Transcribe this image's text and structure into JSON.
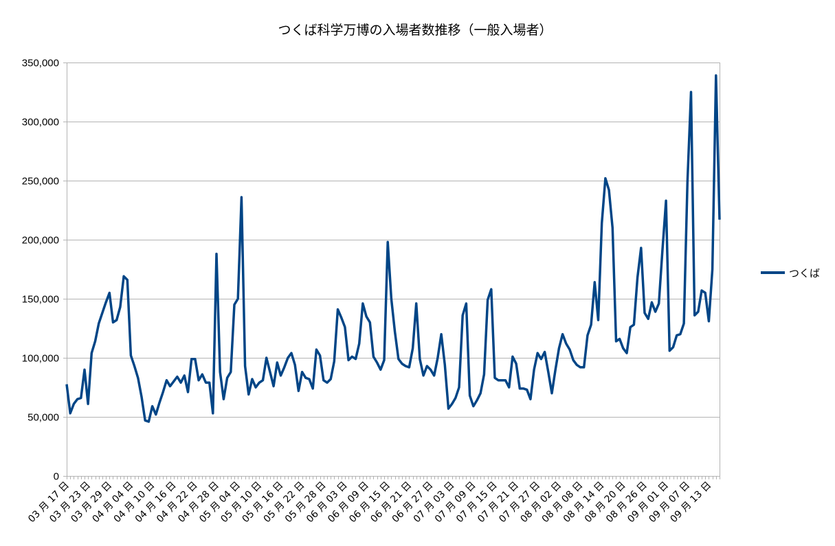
{
  "chart_data": {
    "type": "line",
    "title": "つくば科学万博の入場者数推移（一般入場者）",
    "xlabel": "",
    "ylabel": "",
    "ylim": [
      0,
      350000
    ],
    "yticks": [
      "0",
      "50,000",
      "100,000",
      "150,000",
      "200,000",
      "250,000",
      "300,000",
      "350,000"
    ],
    "ytick_values": [
      0,
      50000,
      100000,
      150000,
      200000,
      250000,
      300000,
      350000
    ],
    "grid": true,
    "legend_position": "right",
    "x_first_date": "03-17",
    "x_count": 184,
    "x_label_every": 6,
    "xtick_labels": [
      "03 月 17 日",
      "03 月 23 日",
      "03 月 29 日",
      "04 月 04 日",
      "04 月 10 日",
      "04 月 16 日",
      "04 月 22 日",
      "04 月 28 日",
      "05 月 04 日",
      "05 月 10 日",
      "05 月 16 日",
      "05 月 22 日",
      "05 月 28 日",
      "06 月 03 日",
      "06 月 09 日",
      "06 月 15 日",
      "06 月 21 日",
      "06 月 27 日",
      "07 月 03 日",
      "07 月 09 日",
      "07 月 15 日",
      "07 月 21 日",
      "07 月 27 日",
      "08 月 02 日",
      "08 月 08 日",
      "08 月 14 日",
      "08 月 20 日",
      "08 月 26 日",
      "09 月 01 日",
      "09 月 07 日",
      "09 月 13 日"
    ],
    "series": [
      {
        "name": "つくば",
        "color": "#004586",
        "values": [
          77600,
          53000,
          61000,
          65000,
          66000,
          90000,
          61000,
          104000,
          114000,
          129000,
          138000,
          147000,
          155000,
          130000,
          132000,
          143000,
          169000,
          166000,
          102000,
          93000,
          83000,
          67000,
          47000,
          46000,
          59000,
          52000,
          62000,
          71000,
          81000,
          76000,
          80000,
          84000,
          79000,
          85000,
          71000,
          99000,
          99000,
          81000,
          86000,
          79000,
          79000,
          53000,
          188000,
          88000,
          65000,
          83000,
          88000,
          145000,
          150000,
          236000,
          93000,
          69000,
          82000,
          75000,
          79000,
          81000,
          100000,
          88000,
          76000,
          96000,
          85000,
          92000,
          100000,
          104000,
          94000,
          72000,
          88000,
          83000,
          82000,
          74000,
          107000,
          102000,
          81000,
          79000,
          82000,
          97000,
          141000,
          134000,
          126000,
          98000,
          101000,
          99000,
          112000,
          146000,
          135000,
          130000,
          101000,
          96000,
          90000,
          98000,
          198000,
          150000,
          122000,
          99000,
          95000,
          93000,
          92000,
          108000,
          146000,
          99000,
          85000,
          93000,
          90000,
          85000,
          100000,
          120000,
          94000,
          57000,
          61000,
          66000,
          75000,
          136000,
          146000,
          68000,
          59000,
          64000,
          70000,
          86000,
          149000,
          158000,
          83000,
          81000,
          81000,
          81000,
          75000,
          101000,
          95000,
          74000,
          74000,
          73000,
          65000,
          90000,
          104000,
          99000,
          105000,
          88000,
          70000,
          90000,
          108000,
          120000,
          112000,
          107000,
          98000,
          94000,
          92000,
          92000,
          119000,
          128000,
          164000,
          132000,
          214000,
          252000,
          242000,
          210000,
          114000,
          116000,
          108000,
          104000,
          126000,
          128000,
          168000,
          193000,
          138000,
          133000,
          147000,
          139000,
          146000,
          191000,
          233000,
          106000,
          109000,
          119000,
          120000,
          129000,
          249000,
          325000,
          136000,
          139000,
          157000,
          155000,
          131000,
          175000,
          339000,
          217000
        ]
      }
    ]
  }
}
